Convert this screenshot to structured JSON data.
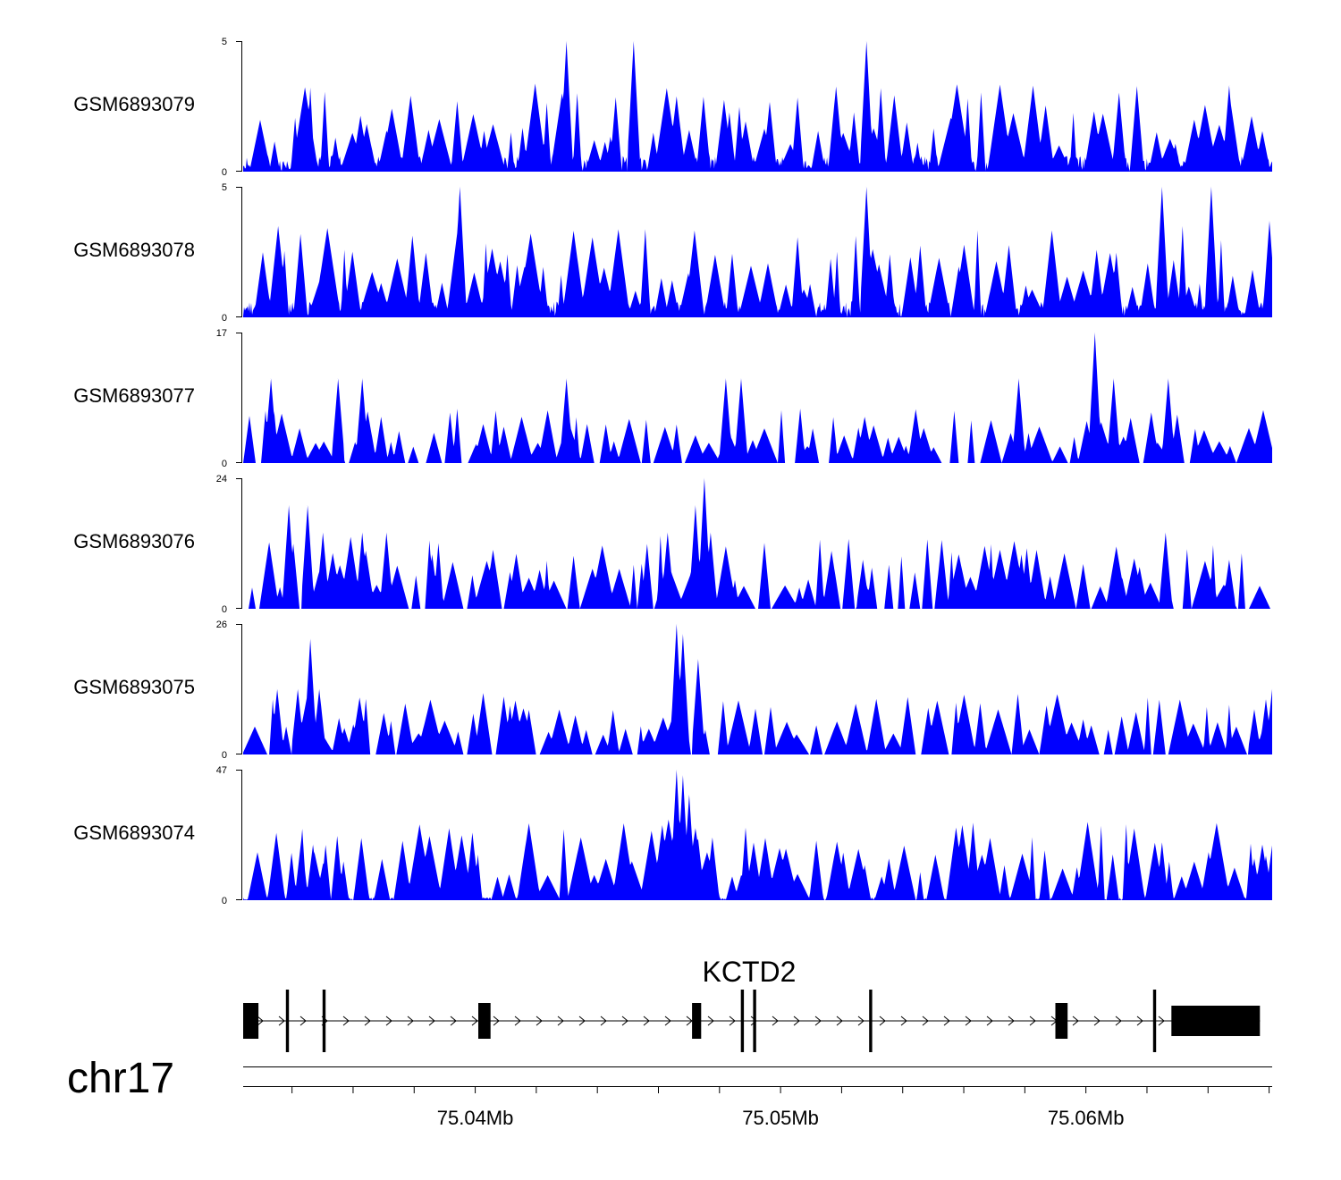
{
  "chart_data": {
    "type": "area",
    "title": "",
    "chromosome": "chr17",
    "x_unit": "Mb",
    "x_range": [
      75.0324,
      75.0661
    ],
    "x_ticks": [
      {
        "value": 75.034
      },
      {
        "value": 75.036
      },
      {
        "value": 75.038
      },
      {
        "value": 75.04,
        "label": "75.04Mb"
      },
      {
        "value": 75.042
      },
      {
        "value": 75.044
      },
      {
        "value": 75.046
      },
      {
        "value": 75.048
      },
      {
        "value": 75.05,
        "label": "75.05Mb"
      },
      {
        "value": 75.052
      },
      {
        "value": 75.054
      },
      {
        "value": 75.056
      },
      {
        "value": 75.058
      },
      {
        "value": 75.06,
        "label": "75.06Mb"
      },
      {
        "value": 75.062
      },
      {
        "value": 75.064
      },
      {
        "value": 75.066
      }
    ],
    "series": [
      {
        "name": "GSM6893079",
        "ymax": 5,
        "ymax_label": "5",
        "ymin_label": "0",
        "color": "#0000ff",
        "seed": 79,
        "base": 0.12,
        "spikes": 1.0,
        "peaks": [
          {
            "x": 75.043,
            "y": 5
          },
          {
            "x": 75.0452,
            "y": 5
          },
          {
            "x": 75.0528,
            "y": 5
          },
          {
            "x": 75.0647,
            "y": 3.3
          }
        ]
      },
      {
        "name": "GSM6893078",
        "ymax": 5,
        "ymax_label": "5",
        "ymin_label": "0",
        "color": "#0000ff",
        "seed": 78,
        "base": 0.12,
        "spikes": 1.0,
        "peaks": [
          {
            "x": 75.0395,
            "y": 5
          },
          {
            "x": 75.0528,
            "y": 5
          },
          {
            "x": 75.0625,
            "y": 5
          },
          {
            "x": 75.0641,
            "y": 5
          },
          {
            "x": 75.066,
            "y": 3.7
          }
        ]
      },
      {
        "name": "GSM6893077",
        "ymax": 17,
        "ymax_label": "17",
        "ymin_label": "0",
        "color": "#0000ff",
        "seed": 77,
        "base": 0.0,
        "spikes": 0.6,
        "peaks": [
          {
            "x": 75.0333,
            "y": 11
          },
          {
            "x": 75.0355,
            "y": 11
          },
          {
            "x": 75.0363,
            "y": 11
          },
          {
            "x": 75.043,
            "y": 11
          },
          {
            "x": 75.0482,
            "y": 11
          },
          {
            "x": 75.0487,
            "y": 11
          },
          {
            "x": 75.0578,
            "y": 11
          },
          {
            "x": 75.0603,
            "y": 17
          },
          {
            "x": 75.0609,
            "y": 11
          },
          {
            "x": 75.0627,
            "y": 11
          }
        ]
      },
      {
        "name": "GSM6893076",
        "ymax": 24,
        "ymax_label": "24",
        "ymin_label": "0",
        "color": "#0000ff",
        "seed": 76,
        "base": 0.0,
        "spikes": 0.8,
        "peaks": [
          {
            "x": 75.0339,
            "y": 19
          },
          {
            "x": 75.0345,
            "y": 19
          },
          {
            "x": 75.035,
            "y": 14
          },
          {
            "x": 75.0363,
            "y": 14
          },
          {
            "x": 75.0371,
            "y": 14
          },
          {
            "x": 75.0386,
            "y": 10
          },
          {
            "x": 75.0463,
            "y": 14
          },
          {
            "x": 75.0472,
            "y": 19
          },
          {
            "x": 75.0475,
            "y": 24
          },
          {
            "x": 75.0477,
            "y": 14
          },
          {
            "x": 75.0527,
            "y": 9
          },
          {
            "x": 75.0579,
            "y": 10
          },
          {
            "x": 75.0626,
            "y": 14
          },
          {
            "x": 75.0647,
            "y": 9
          }
        ]
      },
      {
        "name": "GSM6893075",
        "ymax": 26,
        "ymax_label": "26",
        "ymin_label": "0",
        "color": "#0000ff",
        "seed": 75,
        "base": 0.0,
        "spikes": 0.7,
        "peaks": [
          {
            "x": 75.0335,
            "y": 13
          },
          {
            "x": 75.0342,
            "y": 13
          },
          {
            "x": 75.0346,
            "y": 23
          },
          {
            "x": 75.0349,
            "y": 13
          },
          {
            "x": 75.036,
            "y": 6
          },
          {
            "x": 75.0414,
            "y": 7
          },
          {
            "x": 75.0466,
            "y": 26
          },
          {
            "x": 75.0468,
            "y": 24
          },
          {
            "x": 75.0473,
            "y": 19
          },
          {
            "x": 75.0599,
            "y": 7
          },
          {
            "x": 75.0655,
            "y": 9
          },
          {
            "x": 75.0659,
            "y": 11
          },
          {
            "x": 75.0661,
            "y": 13
          }
        ]
      },
      {
        "name": "GSM6893074",
        "ymax": 47,
        "ymax_label": "47",
        "ymin_label": "0",
        "color": "#0000ff",
        "seed": 74,
        "base": 0.02,
        "spikes": 0.9,
        "peaks": [
          {
            "x": 75.0343,
            "y": 22
          },
          {
            "x": 75.0347,
            "y": 20
          },
          {
            "x": 75.035,
            "y": 13
          },
          {
            "x": 75.0466,
            "y": 47
          },
          {
            "x": 75.0468,
            "y": 45
          },
          {
            "x": 75.047,
            "y": 38
          },
          {
            "x": 75.0473,
            "y": 22
          },
          {
            "x": 75.0487,
            "y": 9
          },
          {
            "x": 75.0601,
            "y": 12
          },
          {
            "x": 75.0655,
            "y": 15
          },
          {
            "x": 75.0659,
            "y": 16
          }
        ]
      }
    ],
    "gene": {
      "name": "KCTD2",
      "strand": "+",
      "start": 75.0324,
      "end": 75.0657,
      "exons": [
        {
          "start": 75.0324,
          "end": 75.0329,
          "type": "coding"
        },
        {
          "start": 75.0338,
          "end": 75.0339,
          "type": "coding"
        },
        {
          "start": 75.035,
          "end": 75.0351,
          "type": "coding"
        },
        {
          "start": 75.0401,
          "end": 75.0405,
          "type": "coding"
        },
        {
          "start": 75.0471,
          "end": 75.0474,
          "type": "coding"
        },
        {
          "start": 75.0487,
          "end": 75.0488,
          "type": "coding"
        },
        {
          "start": 75.0491,
          "end": 75.0492,
          "type": "coding"
        },
        {
          "start": 75.0529,
          "end": 75.053,
          "type": "coding"
        },
        {
          "start": 75.059,
          "end": 75.0594,
          "type": "coding"
        },
        {
          "start": 75.0622,
          "end": 75.0623,
          "type": "coding"
        },
        {
          "start": 75.0628,
          "end": 75.0657,
          "type": "utr"
        }
      ]
    }
  }
}
